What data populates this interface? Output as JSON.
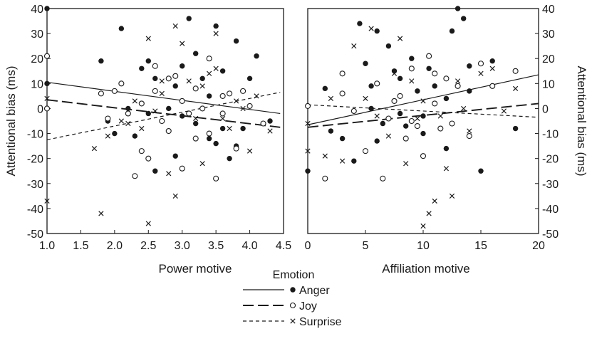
{
  "chart_data": [
    {
      "type": "scatter",
      "panel": "left",
      "xlabel": "Power motive",
      "ylabel": "Attentional bias (ms)",
      "xlim": [
        1.0,
        4.5
      ],
      "ylim": [
        -50,
        40
      ],
      "xticks": [
        "1.0",
        "1.5",
        "2.0",
        "2.5",
        "3.0",
        "3.5",
        "4.0",
        "4.5"
      ],
      "yticks": [
        "40",
        "30",
        "20",
        "10",
        "0",
        "-10",
        "-20",
        "-30",
        "-40",
        "-50"
      ],
      "series": [
        {
          "name": "Anger",
          "marker": "filled-circle",
          "line": "solid",
          "fit": [
            [
              1.0,
              10.5
            ],
            [
              4.45,
              -2.0
            ]
          ],
          "points": [
            [
              1.0,
              40
            ],
            [
              1.0,
              10
            ],
            [
              1.8,
              19
            ],
            [
              2.1,
              32
            ],
            [
              2.4,
              16
            ],
            [
              2.5,
              19
            ],
            [
              2.6,
              12
            ],
            [
              2.9,
              9
            ],
            [
              3.0,
              17
            ],
            [
              3.1,
              36
            ],
            [
              3.2,
              22
            ],
            [
              3.3,
              12
            ],
            [
              3.4,
              5
            ],
            [
              3.5,
              33
            ],
            [
              3.6,
              15
            ],
            [
              3.8,
              27
            ],
            [
              4.0,
              12
            ],
            [
              4.1,
              21
            ],
            [
              2.2,
              0
            ],
            [
              2.5,
              -2
            ],
            [
              2.8,
              0
            ],
            [
              3.0,
              -3
            ],
            [
              3.2,
              -6
            ],
            [
              3.4,
              -12
            ],
            [
              3.6,
              -8
            ],
            [
              3.7,
              -20
            ],
            [
              3.9,
              -8
            ],
            [
              4.3,
              -5
            ],
            [
              2.0,
              -10
            ],
            [
              2.6,
              -25
            ],
            [
              2.3,
              -11
            ],
            [
              3.5,
              -14
            ],
            [
              2.9,
              -19
            ],
            [
              3.8,
              -15
            ],
            [
              1.9,
              -5
            ]
          ]
        },
        {
          "name": "Joy",
          "marker": "open-circle",
          "line": "long-dash",
          "fit": [
            [
              1.0,
              3.5
            ],
            [
              4.45,
              -7.5
            ]
          ],
          "points": [
            [
              1.0,
              21
            ],
            [
              1.0,
              0
            ],
            [
              1.8,
              6
            ],
            [
              2.0,
              7
            ],
            [
              2.2,
              -2
            ],
            [
              2.3,
              -27
            ],
            [
              2.4,
              -17
            ],
            [
              2.5,
              -20
            ],
            [
              2.6,
              17
            ],
            [
              2.7,
              -5
            ],
            [
              2.8,
              -9
            ],
            [
              2.9,
              13
            ],
            [
              3.0,
              3
            ],
            [
              3.1,
              -2
            ],
            [
              3.2,
              -12
            ],
            [
              3.3,
              0
            ],
            [
              3.4,
              20
            ],
            [
              3.5,
              -28
            ],
            [
              3.6,
              5
            ],
            [
              3.7,
              6
            ],
            [
              3.8,
              -16
            ],
            [
              3.9,
              7
            ],
            [
              4.0,
              1
            ],
            [
              4.2,
              -6
            ],
            [
              2.1,
              10
            ],
            [
              2.6,
              7
            ],
            [
              2.8,
              12
            ],
            [
              3.0,
              -24
            ],
            [
              3.2,
              8
            ],
            [
              3.4,
              -10
            ],
            [
              1.9,
              -4
            ],
            [
              2.4,
              2
            ],
            [
              3.6,
              -2
            ]
          ]
        },
        {
          "name": "Surprise",
          "marker": "x",
          "line": "short-dash",
          "fit": [
            [
              1.0,
              -12.5
            ],
            [
              4.45,
              6.5
            ]
          ],
          "points": [
            [
              1.0,
              4
            ],
            [
              1.0,
              -37
            ],
            [
              1.7,
              -16
            ],
            [
              1.8,
              -42
            ],
            [
              1.9,
              -11
            ],
            [
              2.1,
              -5
            ],
            [
              2.3,
              3
            ],
            [
              2.4,
              -8
            ],
            [
              2.5,
              28
            ],
            [
              2.5,
              -46
            ],
            [
              2.6,
              -1
            ],
            [
              2.7,
              6
            ],
            [
              2.8,
              -26
            ],
            [
              2.9,
              33
            ],
            [
              2.9,
              -35
            ],
            [
              3.0,
              26
            ],
            [
              3.1,
              11
            ],
            [
              3.2,
              -4
            ],
            [
              3.3,
              -22
            ],
            [
              3.4,
              14
            ],
            [
              3.5,
              16
            ],
            [
              3.5,
              30
            ],
            [
              3.6,
              -4
            ],
            [
              3.7,
              -8
            ],
            [
              3.8,
              3
            ],
            [
              4.0,
              -17
            ],
            [
              4.1,
              5
            ],
            [
              4.3,
              -9
            ],
            [
              2.2,
              -6
            ],
            [
              2.7,
              11
            ],
            [
              3.3,
              9
            ],
            [
              3.9,
              0
            ]
          ]
        }
      ]
    },
    {
      "type": "scatter",
      "panel": "right",
      "xlabel": "Affiliation motive",
      "ylabel": "Attentional bias (ms)",
      "xlim": [
        0,
        20
      ],
      "ylim": [
        -50,
        40
      ],
      "xticks": [
        "0",
        "5",
        "10",
        "15",
        "20"
      ],
      "yticks": [
        "40",
        "30",
        "20",
        "10",
        "0",
        "-10",
        "-20",
        "-30",
        "-40",
        "-50"
      ],
      "series": [
        {
          "name": "Anger",
          "marker": "filled-circle",
          "line": "solid",
          "fit": [
            [
              0,
              -6.5
            ],
            [
              20,
              13.5
            ]
          ],
          "points": [
            [
              0,
              -25
            ],
            [
              1.5,
              8
            ],
            [
              3,
              -12
            ],
            [
              4,
              -21
            ],
            [
              4.5,
              34
            ],
            [
              5,
              18
            ],
            [
              5.5,
              9
            ],
            [
              6,
              31
            ],
            [
              6.5,
              -6
            ],
            [
              7,
              25
            ],
            [
              7.5,
              15
            ],
            [
              8,
              12
            ],
            [
              8.5,
              -7
            ],
            [
              9,
              20
            ],
            [
              9.5,
              7
            ],
            [
              10,
              -3
            ],
            [
              10.5,
              16
            ],
            [
              11,
              9
            ],
            [
              12,
              4
            ],
            [
              12.5,
              31
            ],
            [
              13,
              40
            ],
            [
              13.5,
              36
            ],
            [
              14,
              17
            ],
            [
              15,
              -25
            ],
            [
              16,
              19
            ],
            [
              18,
              -8
            ],
            [
              2,
              -9
            ],
            [
              6,
              -13
            ],
            [
              8,
              -2
            ],
            [
              10,
              -10
            ],
            [
              11,
              2
            ],
            [
              12,
              -16
            ],
            [
              14,
              7
            ],
            [
              5.5,
              0
            ]
          ]
        },
        {
          "name": "Joy",
          "marker": "open-circle",
          "line": "long-dash",
          "fit": [
            [
              0,
              -7.5
            ],
            [
              20,
              2.0
            ]
          ],
          "points": [
            [
              0,
              1
            ],
            [
              1.5,
              -28
            ],
            [
              3,
              14
            ],
            [
              4,
              -1
            ],
            [
              5,
              -17
            ],
            [
              6,
              10
            ],
            [
              6.5,
              -28
            ],
            [
              7,
              -4
            ],
            [
              8,
              5
            ],
            [
              8.5,
              -12
            ],
            [
              9,
              16
            ],
            [
              9.5,
              -7
            ],
            [
              10,
              -19
            ],
            [
              10.5,
              21
            ],
            [
              11,
              2
            ],
            [
              11.5,
              -8
            ],
            [
              12.5,
              -6
            ],
            [
              13,
              9
            ],
            [
              14,
              -11
            ],
            [
              15,
              18
            ],
            [
              16,
              9
            ],
            [
              18,
              15
            ],
            [
              3,
              6
            ],
            [
              7.5,
              3
            ],
            [
              12,
              12
            ],
            [
              9,
              -5
            ],
            [
              11,
              14
            ]
          ]
        },
        {
          "name": "Surprise",
          "marker": "x",
          "line": "short-dash",
          "fit": [
            [
              0,
              1.5
            ],
            [
              20,
              -3.5
            ]
          ],
          "points": [
            [
              0,
              -6
            ],
            [
              0,
              -17
            ],
            [
              1.5,
              -19
            ],
            [
              2,
              4
            ],
            [
              3,
              -21
            ],
            [
              4,
              25
            ],
            [
              5,
              4
            ],
            [
              5.5,
              32
            ],
            [
              6,
              -3
            ],
            [
              7,
              -11
            ],
            [
              7.5,
              14
            ],
            [
              8,
              28
            ],
            [
              8.5,
              -22
            ],
            [
              9,
              11
            ],
            [
              9.5,
              -4
            ],
            [
              10,
              -47
            ],
            [
              10.5,
              -42
            ],
            [
              11,
              -37
            ],
            [
              11.5,
              -3
            ],
            [
              12.5,
              -35
            ],
            [
              13,
              11
            ],
            [
              13.5,
              0
            ],
            [
              15,
              14
            ],
            [
              16,
              16
            ],
            [
              17,
              -1
            ],
            [
              18,
              8
            ],
            [
              12,
              -24
            ],
            [
              10,
              3
            ],
            [
              14,
              -9
            ]
          ]
        }
      ]
    }
  ],
  "legend": {
    "title": "Emotion",
    "items": [
      {
        "label": "Anger",
        "marker": "filled-circle",
        "line": "solid"
      },
      {
        "label": "Joy",
        "marker": "open-circle",
        "line": "long-dash"
      },
      {
        "label": "Surprise",
        "marker": "x",
        "line": "short-dash"
      }
    ]
  },
  "colors": {
    "ink": "#1a1a1a",
    "background": "#ffffff"
  }
}
